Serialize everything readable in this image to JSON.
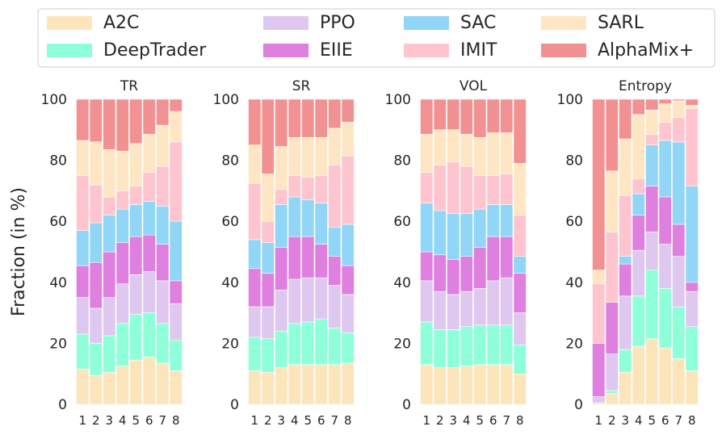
{
  "chart_data": {
    "type": "bar",
    "stacked": true,
    "ylabel": "Fraction (in %)",
    "ylim": [
      0,
      100
    ],
    "yticks": [
      0,
      20,
      40,
      60,
      80,
      100
    ],
    "grid": true,
    "legend_position": "top",
    "categories": [
      "1",
      "2",
      "3",
      "4",
      "5",
      "6",
      "7",
      "8"
    ],
    "legend": [
      {
        "name": "A2C",
        "color": "#FDE5BB"
      },
      {
        "name": "DeepTrader",
        "color": "#8FFFD9"
      },
      {
        "name": "PPO",
        "color": "#DEC8EF"
      },
      {
        "name": "EIIE",
        "color": "#DF7FDF"
      },
      {
        "name": "SAC",
        "color": "#91D5F7"
      },
      {
        "name": "IMIT",
        "color": "#FEC5CF"
      },
      {
        "name": "SARL",
        "color": "#FEE5C3"
      },
      {
        "name": "AlphaMix+",
        "color": "#F29191"
      }
    ],
    "subplots": [
      {
        "title": "TR",
        "series": [
          {
            "name": "A2C",
            "values": [
              11.5,
              9.5,
              10.5,
              12.5,
              14.5,
              15.5,
              13.5,
              11.0
            ]
          },
          {
            "name": "DeepTrader",
            "values": [
              11.5,
              10.5,
              12.0,
              14.0,
              15.0,
              14.5,
              13.0,
              10.0
            ]
          },
          {
            "name": "PPO",
            "values": [
              12.0,
              11.5,
              12.5,
              13.0,
              13.0,
              13.5,
              14.0,
              12.0
            ]
          },
          {
            "name": "EIIE",
            "values": [
              10.5,
              15.0,
              15.0,
              13.5,
              12.5,
              12.0,
              12.0,
              7.5
            ]
          },
          {
            "name": "SAC",
            "values": [
              11.5,
              13.0,
              12.0,
              11.0,
              10.5,
              11.0,
              12.5,
              19.5
            ]
          },
          {
            "name": "IMIT",
            "values": [
              18.0,
              12.5,
              6.0,
              6.0,
              6.0,
              9.5,
              13.0,
              26.0
            ]
          },
          {
            "name": "SARL",
            "values": [
              11.5,
              14.0,
              15.5,
              13.0,
              14.0,
              12.5,
              13.5,
              10.0
            ]
          },
          {
            "name": "AlphaMix+",
            "values": [
              13.5,
              14.0,
              16.5,
              17.0,
              14.5,
              11.5,
              8.5,
              4.0
            ]
          }
        ]
      },
      {
        "title": "SR",
        "series": [
          {
            "name": "A2C",
            "values": [
              11.0,
              10.5,
              12.0,
              13.0,
              13.0,
              13.0,
              13.0,
              13.5
            ]
          },
          {
            "name": "DeepTrader",
            "values": [
              11.0,
              11.0,
              12.0,
              13.5,
              14.0,
              15.0,
              12.0,
              10.0
            ]
          },
          {
            "name": "PPO",
            "values": [
              10.0,
              10.5,
              13.5,
              14.5,
              14.5,
              13.5,
              14.0,
              12.5
            ]
          },
          {
            "name": "EIIE",
            "values": [
              12.5,
              11.0,
              14.0,
              14.0,
              13.5,
              11.0,
              9.5,
              9.5
            ]
          },
          {
            "name": "SAC",
            "values": [
              9.5,
              10.0,
              14.0,
              13.0,
              12.0,
              13.5,
              9.5,
              13.5
            ]
          },
          {
            "name": "IMIT",
            "values": [
              18.5,
              7.0,
              5.0,
              7.0,
              7.5,
              9.0,
              20.5,
              22.5
            ]
          },
          {
            "name": "SARL",
            "values": [
              12.5,
              15.5,
              14.0,
              12.5,
              13.0,
              12.5,
              12.0,
              11.0
            ]
          },
          {
            "name": "AlphaMix+",
            "values": [
              15.0,
              24.5,
              15.5,
              12.5,
              12.5,
              12.5,
              9.5,
              7.5
            ]
          }
        ]
      },
      {
        "title": "VOL",
        "series": [
          {
            "name": "A2C",
            "values": [
              13.0,
              12.0,
              12.0,
              12.5,
              13.0,
              13.0,
              13.0,
              10.0
            ]
          },
          {
            "name": "DeepTrader",
            "values": [
              14.0,
              12.5,
              12.5,
              13.0,
              13.0,
              13.0,
              13.0,
              9.5
            ]
          },
          {
            "name": "PPO",
            "values": [
              13.5,
              12.5,
              11.5,
              11.5,
              12.0,
              14.5,
              15.5,
              10.5
            ]
          },
          {
            "name": "EIIE",
            "values": [
              9.5,
              12.0,
              11.5,
              11.5,
              13.5,
              14.5,
              13.5,
              13.0
            ]
          },
          {
            "name": "SAC",
            "values": [
              16.0,
              14.5,
              15.0,
              14.0,
              12.5,
              10.5,
              10.5,
              5.5
            ]
          },
          {
            "name": "IMIT",
            "values": [
              10.0,
              15.0,
              17.0,
              15.5,
              11.0,
              9.5,
              10.0,
              13.5
            ]
          },
          {
            "name": "SARL",
            "values": [
              12.5,
              11.5,
              10.5,
              10.5,
              12.5,
              14.0,
              13.5,
              17.0
            ]
          },
          {
            "name": "AlphaMix+",
            "values": [
              11.5,
              10.0,
              10.0,
              11.5,
              12.5,
              11.0,
              11.0,
              21.0
            ]
          }
        ]
      },
      {
        "title": "Entropy",
        "series": [
          {
            "name": "A2C",
            "values": [
              0.5,
              3.5,
              10.5,
              19.0,
              21.5,
              18.5,
              15.0,
              11.0
            ]
          },
          {
            "name": "DeepTrader",
            "values": [
              0.0,
              1.0,
              7.5,
              16.5,
              22.5,
              19.5,
              17.0,
              14.5
            ]
          },
          {
            "name": "PPO",
            "values": [
              2.0,
              12.0,
              17.5,
              15.0,
              12.5,
              14.5,
              16.5,
              11.5
            ]
          },
          {
            "name": "EIIE",
            "values": [
              17.5,
              17.0,
              10.5,
              11.5,
              15.0,
              15.5,
              10.5,
              3.0
            ]
          },
          {
            "name": "SAC",
            "values": [
              0.0,
              0.0,
              2.5,
              7.0,
              13.5,
              18.5,
              27.0,
              31.5
            ]
          },
          {
            "name": "IMIT",
            "values": [
              19.5,
              23.0,
              20.0,
              5.0,
              3.5,
              6.0,
              8.0,
              25.5
            ]
          },
          {
            "name": "SARL",
            "values": [
              4.5,
              20.0,
              18.5,
              21.0,
              8.0,
              6.0,
              5.5,
              1.0
            ]
          },
          {
            "name": "AlphaMix+",
            "values": [
              56.0,
              23.5,
              13.0,
              5.0,
              3.5,
              1.5,
              0.5,
              2.0
            ]
          }
        ]
      }
    ]
  }
}
